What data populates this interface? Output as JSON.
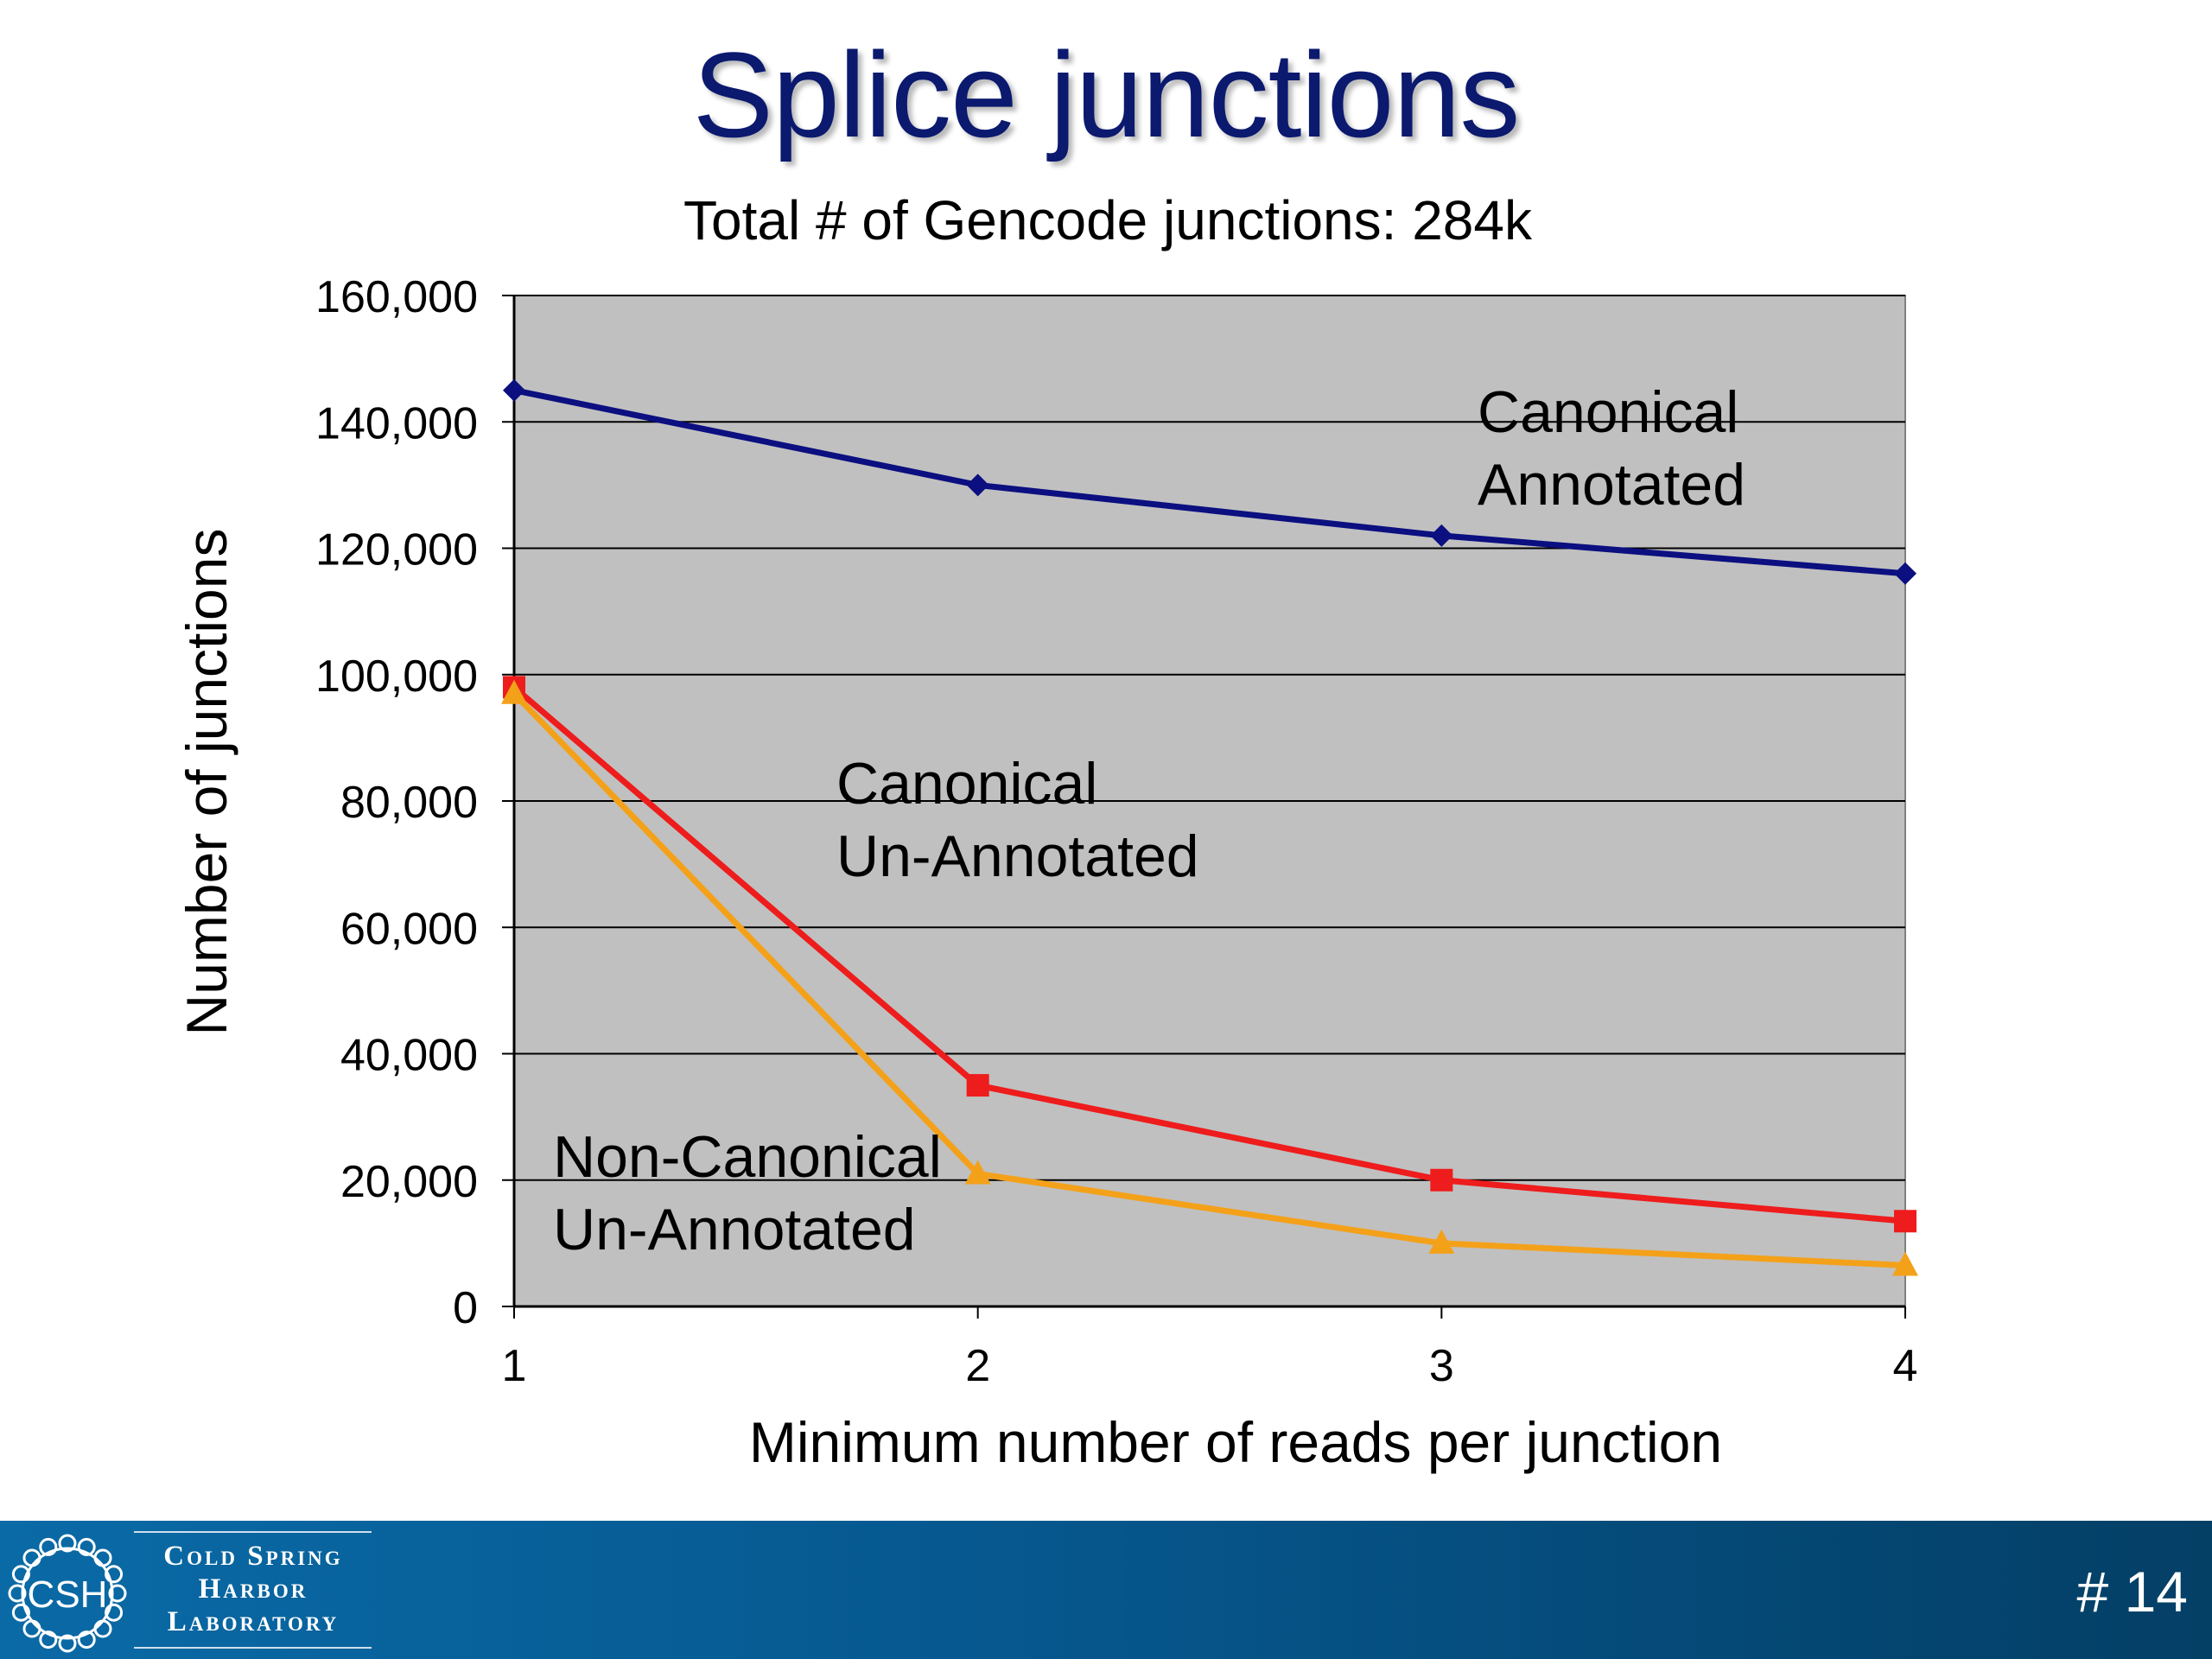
{
  "slide": {
    "title": "Splice junctions",
    "page_number": "# 14"
  },
  "footer": {
    "logo": {
      "mark_text": "CSH",
      "line1": "Cold Spring",
      "line2": "Harbor",
      "line3": "Laboratory"
    }
  },
  "colors": {
    "title": "#0b1a6e",
    "plot_background": "#c0c0c0",
    "canonical_annotated": "#0b0f80",
    "canonical_unannotated": "#ee1c1c",
    "noncanonical_unannotated": "#f4a11a"
  },
  "chart_data": {
    "type": "line",
    "title": "Total # of Gencode junctions: 284k",
    "xlabel": "Minimum number of reads per junction",
    "ylabel": "Number of junctions",
    "x": [
      1,
      2,
      3,
      4
    ],
    "x_tick_labels": [
      "1",
      "2",
      "3",
      "4"
    ],
    "ylim": [
      0,
      160000
    ],
    "y_ticks": [
      0,
      20000,
      40000,
      60000,
      80000,
      100000,
      120000,
      140000,
      160000
    ],
    "y_tick_labels": [
      "0",
      "20,000",
      "40,000",
      "60,000",
      "80,000",
      "100,000",
      "120,000",
      "140,000",
      "160,000"
    ],
    "grid": true,
    "series": [
      {
        "name": "Canonical Annotated",
        "label_lines": [
          "Canonical",
          "Annotated"
        ],
        "values": [
          145000,
          130000,
          122000,
          116000
        ],
        "marker": "diamond",
        "color": "#0b0f80"
      },
      {
        "name": "Canonical Un-Annotated",
        "label_lines": [
          "Canonical",
          "Un-Annotated"
        ],
        "values": [
          98000,
          35000,
          20000,
          13500
        ],
        "marker": "square",
        "color": "#ee1c1c"
      },
      {
        "name": "Non-Canonical Un-Annotated",
        "label_lines": [
          "Non-Canonical",
          "Un-Annotated"
        ],
        "values": [
          97000,
          21000,
          10000,
          6500
        ],
        "marker": "triangle",
        "color": "#f4a11a"
      }
    ]
  }
}
